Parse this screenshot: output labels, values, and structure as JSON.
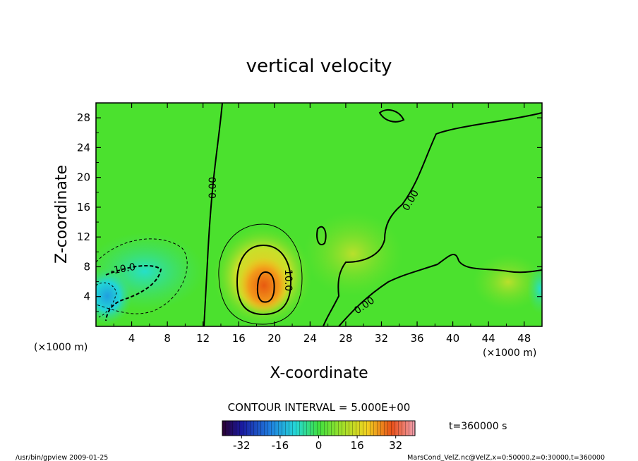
{
  "chart_data": {
    "type": "heatmap",
    "title": "vertical velocity",
    "xlabel": "X-coordinate",
    "ylabel": "Z-coordinate",
    "x_unit": "(×1000 m)",
    "y_unit": "(×1000 m)",
    "xlim": [
      0,
      50
    ],
    "ylim": [
      0,
      30
    ],
    "xticks": [
      "4",
      "8",
      "12",
      "16",
      "20",
      "24",
      "28",
      "32",
      "36",
      "40",
      "44",
      "48"
    ],
    "yticks": [
      "4",
      "8",
      "12",
      "16",
      "20",
      "24",
      "28"
    ],
    "contour_interval_text": "CONTOUR INTERVAL = 5.000E+00",
    "contour_labels": [
      "0.00",
      "0.00",
      "0.00",
      "-10.0",
      "10.0"
    ],
    "colorbar": {
      "ticks": [
        "-32",
        "-16",
        "0",
        "16",
        "32"
      ],
      "range": [
        -40,
        40
      ]
    },
    "time_text": "t=360000 s",
    "features": [
      {
        "kind": "updraft-core",
        "x": 19,
        "z": 5.5,
        "peak": 25
      },
      {
        "kind": "downdraft",
        "x": 1.2,
        "z": 3.8,
        "peak": -20
      },
      {
        "kind": "downdraft",
        "x": 5.0,
        "z": 7.0,
        "peak": -12
      }
    ]
  },
  "footer": {
    "left": "/usr/bin/gpview   2009-01-25",
    "right": "MarsCond_VelZ.nc@VelZ,x=0:50000,z=0:30000,t=360000"
  }
}
